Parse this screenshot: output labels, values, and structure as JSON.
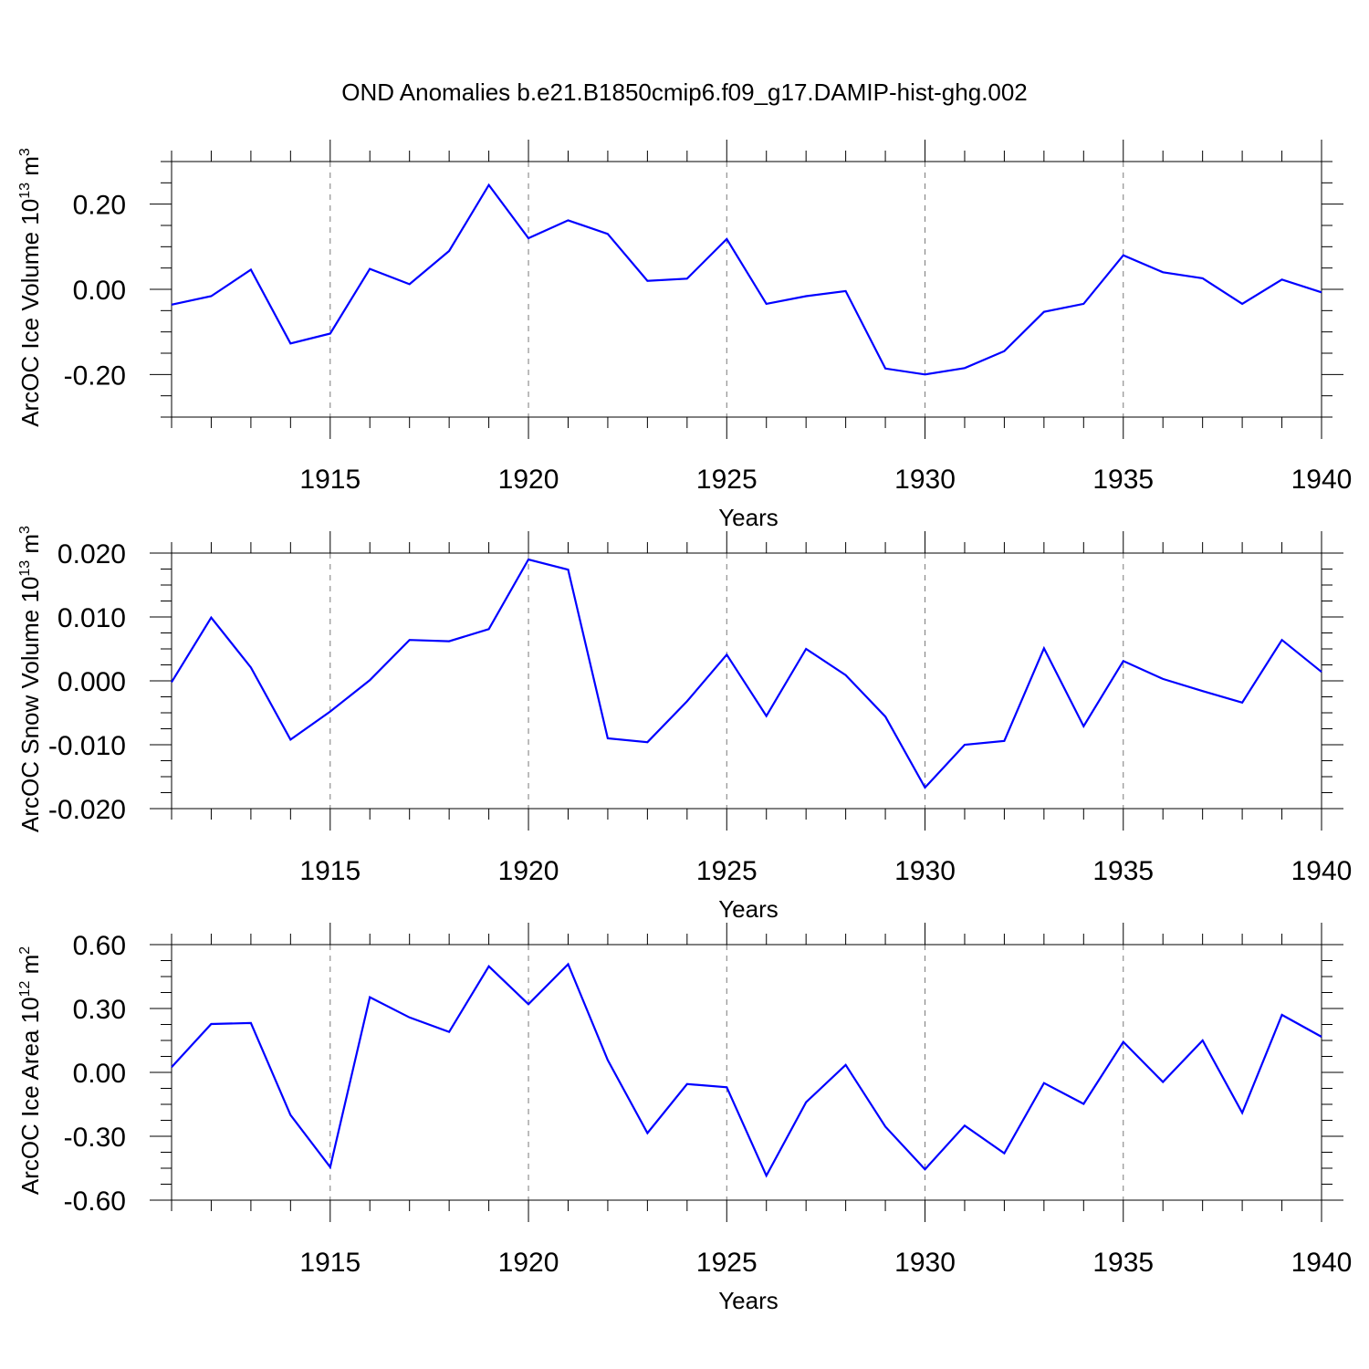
{
  "title": "OND Anomalies b.e21.B1850cmip6.f09_g17.DAMIP-hist-ghg.002",
  "chart_data": [
    {
      "type": "line",
      "ylabel": "ArcOC Ice Volume 10",
      "ylabel_exp": "13",
      "ylabel_unit": " m",
      "ylabel_unit_exp": "3",
      "xlabel": "Years",
      "xlim": [
        1911,
        1940
      ],
      "ylim": [
        -0.3,
        0.3
      ],
      "yticks": [
        -0.2,
        0.0,
        0.2
      ],
      "ytick_labels": [
        "-0.20",
        "0.00",
        "0.20"
      ],
      "xticks": [
        1915,
        1920,
        1925,
        1930,
        1935,
        1940
      ],
      "xtick_labels": [
        "1915",
        "1920",
        "1925",
        "1930",
        "1935",
        "1940"
      ],
      "grid": "vertical dashed at major x ticks",
      "color": "#0000ff",
      "x": [
        1911,
        1912,
        1913,
        1914,
        1915,
        1916,
        1917,
        1918,
        1919,
        1920,
        1921,
        1922,
        1923,
        1924,
        1925,
        1926,
        1927,
        1928,
        1929,
        1930,
        1931,
        1932,
        1933,
        1934,
        1935,
        1936,
        1937,
        1938,
        1939,
        1940
      ],
      "y": [
        -0.036,
        -0.016,
        0.046,
        -0.127,
        -0.104,
        0.048,
        0.012,
        0.09,
        0.245,
        0.12,
        0.162,
        0.13,
        0.02,
        0.025,
        0.118,
        -0.034,
        -0.016,
        -0.004,
        -0.186,
        -0.2,
        -0.185,
        -0.145,
        -0.053,
        -0.034,
        0.08,
        0.04,
        0.026,
        -0.034,
        0.023,
        -0.007
      ]
    },
    {
      "type": "line",
      "ylabel": "ArcOC Snow Volume 10",
      "ylabel_exp": "13",
      "ylabel_unit": " m",
      "ylabel_unit_exp": "3",
      "xlabel": "Years",
      "xlim": [
        1911,
        1940
      ],
      "ylim": [
        -0.02,
        0.02
      ],
      "yticks": [
        -0.02,
        -0.01,
        0.0,
        0.01,
        0.02
      ],
      "ytick_labels": [
        "-0.020",
        "-0.010",
        "0.000",
        "0.010",
        "0.020"
      ],
      "xticks": [
        1915,
        1920,
        1925,
        1930,
        1935,
        1940
      ],
      "xtick_labels": [
        "1915",
        "1920",
        "1925",
        "1930",
        "1935",
        "1940"
      ],
      "grid": "vertical dashed at major x ticks",
      "color": "#0000ff",
      "x": [
        1911,
        1912,
        1913,
        1914,
        1915,
        1916,
        1917,
        1918,
        1919,
        1920,
        1921,
        1922,
        1923,
        1924,
        1925,
        1926,
        1927,
        1928,
        1929,
        1930,
        1931,
        1932,
        1933,
        1934,
        1935,
        1936,
        1937,
        1938,
        1939,
        1940
      ],
      "y": [
        -0.0002,
        0.0099,
        0.0021,
        -0.0092,
        -0.0048,
        0.0001,
        0.0064,
        0.0062,
        0.0081,
        0.019,
        0.0174,
        -0.009,
        -0.0096,
        -0.0032,
        0.0041,
        -0.0055,
        0.005,
        0.0009,
        -0.0056,
        -0.0167,
        -0.01,
        -0.0094,
        0.0051,
        -0.0071,
        0.0031,
        0.0003,
        -0.0016,
        -0.0034,
        0.0064,
        0.0014
      ]
    },
    {
      "type": "line",
      "ylabel": "ArcOC Ice Area 10",
      "ylabel_exp": "12",
      "ylabel_unit": " m",
      "ylabel_unit_exp": "2",
      "xlabel": "Years",
      "xlim": [
        1911,
        1940
      ],
      "ylim": [
        -0.6,
        0.6
      ],
      "yticks": [
        -0.6,
        -0.3,
        0.0,
        0.3,
        0.6
      ],
      "ytick_labels": [
        "-0.60",
        "-0.30",
        "0.00",
        "0.30",
        "0.60"
      ],
      "xticks": [
        1915,
        1920,
        1925,
        1930,
        1935,
        1940
      ],
      "xtick_labels": [
        "1915",
        "1920",
        "1925",
        "1930",
        "1935",
        "1940"
      ],
      "grid": "vertical dashed at major x ticks",
      "color": "#0000ff",
      "x": [
        1911,
        1912,
        1913,
        1914,
        1915,
        1916,
        1917,
        1918,
        1919,
        1920,
        1921,
        1922,
        1923,
        1924,
        1925,
        1926,
        1927,
        1928,
        1929,
        1930,
        1931,
        1932,
        1933,
        1934,
        1935,
        1936,
        1937,
        1938,
        1939,
        1940
      ],
      "y": [
        0.025,
        0.227,
        0.232,
        -0.2,
        -0.445,
        0.353,
        0.258,
        0.19,
        0.498,
        0.32,
        0.508,
        0.058,
        -0.285,
        -0.055,
        -0.07,
        -0.485,
        -0.14,
        0.035,
        -0.255,
        -0.455,
        -0.25,
        -0.38,
        -0.05,
        -0.148,
        0.143,
        -0.045,
        0.15,
        -0.19,
        0.27,
        0.167
      ]
    }
  ]
}
